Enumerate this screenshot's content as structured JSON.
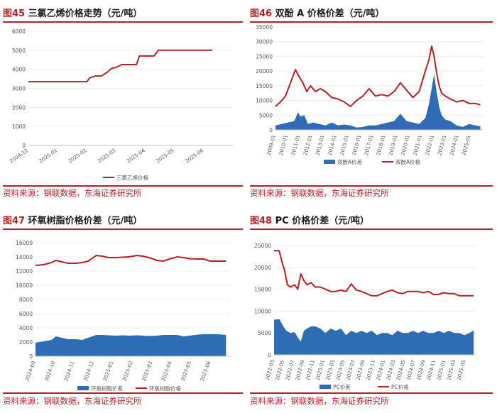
{
  "source_text": "资料来源：钢联数据，东海证券研究所",
  "panels": [
    {
      "num": "图45",
      "title": "三氯乙烯价格走势（元/吨）",
      "chart_data": {
        "type": "line",
        "x_tick_labels": [
          "2024-12",
          "2025-01",
          "2025-02",
          "2025-03",
          "2025-04",
          "2025-05",
          "2025-06"
        ],
        "y_tick_labels": [
          "0",
          "1000",
          "2000",
          "3000",
          "4000",
          "5000",
          "6000"
        ],
        "ylim": [
          0,
          6000
        ],
        "series": [
          {
            "name": "三氯乙烯价格",
            "color": "#b2212a",
            "x": [
              0,
              1,
              2,
              2.1,
              2.3,
              2.5,
              2.7,
              2.85,
              3.0,
              3.2,
              3.45,
              3.7,
              3.8,
              4.1,
              4.3,
              4.45,
              4.6,
              5.0,
              5.4,
              6.0,
              6.3
            ],
            "values": [
              3350,
              3350,
              3350,
              3550,
              3650,
              3650,
              3850,
              4050,
              4100,
              4250,
              4250,
              4250,
              4700,
              4700,
              4700,
              5000,
              5000,
              5000,
              5000,
              5000,
              5000
            ]
          }
        ]
      }
    },
    {
      "num": "图46",
      "title": "双酚 A 价格价差（元/吨）",
      "chart_data": {
        "type": "area",
        "x_tick_labels": [
          "2009-01",
          "2010-01",
          "2011-01",
          "2012-01",
          "2013-01",
          "2014-01",
          "2015-01",
          "2016-01",
          "2017-01",
          "2018-01",
          "2019-01",
          "2020-01",
          "2021-01",
          "2022-01",
          "2023-01",
          "2024-01",
          "2025-01"
        ],
        "y_tick_labels": [
          "0",
          "5000",
          "10000",
          "15000",
          "20000",
          "25000",
          "30000",
          "35000"
        ],
        "ylim": [
          0,
          35000
        ],
        "series": [
          {
            "name": "双酚A价差",
            "type": "area",
            "color": "#2e6db4",
            "x": [
              0,
              0.5,
              1,
              1.5,
              1.8,
              2,
              2.3,
              2.6,
              3,
              3.5,
              4,
              4.5,
              5,
              5.5,
              6,
              6.5,
              7,
              7.5,
              8,
              8.5,
              9,
              9.5,
              10,
              10.5,
              11,
              11.5,
              12,
              12.3,
              12.5,
              12.7,
              12.9,
              13.1,
              13.3,
              13.6,
              14,
              14.5,
              15,
              15.5,
              16,
              16.4
            ],
            "values": [
              1500,
              2000,
              2500,
              3000,
              6000,
              4500,
              5000,
              2000,
              2500,
              2000,
              1500,
              2500,
              1500,
              1800,
              1500,
              800,
              1000,
              1500,
              1500,
              2000,
              2500,
              3000,
              5500,
              3000,
              2500,
              2000,
              4000,
              9000,
              14000,
              19000,
              13000,
              8000,
              5000,
              3500,
              3000,
              1500,
              1000,
              2000,
              1500,
              1200
            ]
          },
          {
            "name": "双酚A价格",
            "type": "line",
            "color": "#b2212a",
            "x": [
              0,
              0.4,
              0.8,
              1.2,
              1.6,
              1.9,
              2.2,
              2.5,
              2.8,
              3.2,
              3.6,
              4,
              4.5,
              5,
              5.5,
              6,
              6.5,
              7,
              7.5,
              8,
              8.5,
              9,
              9.5,
              10,
              10.5,
              11,
              11.5,
              12,
              12.3,
              12.5,
              12.7,
              12.9,
              13.1,
              13.3,
              13.6,
              14,
              14.5,
              15,
              15.5,
              16,
              16.4
            ],
            "values": [
              8000,
              9500,
              11500,
              16000,
              20500,
              18000,
              16000,
              13000,
              15000,
              13000,
              14000,
              13000,
              11000,
              10500,
              9500,
              8000,
              10000,
              11500,
              14000,
              11500,
              12000,
              11500,
              13000,
              16000,
              13500,
              11000,
              13000,
              20000,
              24000,
              28500,
              25000,
              19500,
              15000,
              12500,
              11500,
              10500,
              9500,
              10000,
              9000,
              9000,
              8500
            ]
          }
        ]
      }
    },
    {
      "num": "图47",
      "title": "环氧树脂价格价差（元/吨）",
      "chart_data": {
        "type": "area",
        "x_tick_labels": [
          "2024-09",
          "2024-10",
          "2024-11",
          "2024-12",
          "2025-01",
          "2025-02",
          "2025-03",
          "2025-04",
          "2025-05",
          "2025-06"
        ],
        "y_tick_labels": [
          "0",
          "2000",
          "4000",
          "6000",
          "8000",
          "10000",
          "12000",
          "14000",
          "16000"
        ],
        "ylim": [
          0,
          16000
        ],
        "series": [
          {
            "name": "环氧树脂价差",
            "type": "area",
            "color": "#2e6db4",
            "x": [
              0,
              0.4,
              0.8,
              1,
              1.3,
              1.6,
              2,
              2.3,
              2.6,
              3,
              3.3,
              3.6,
              4,
              4.3,
              4.6,
              5,
              5.3,
              5.6,
              6,
              6.3,
              6.6,
              7,
              7.3,
              7.6,
              8,
              8.3,
              8.6,
              9,
              9.4
            ],
            "values": [
              1900,
              2100,
              2300,
              2800,
              2600,
              2400,
              2400,
              2300,
              2600,
              3000,
              3000,
              2950,
              2900,
              2950,
              2900,
              2950,
              2900,
              2850,
              2900,
              3000,
              3000,
              3000,
              2800,
              2900,
              3050,
              3100,
              3100,
              3100,
              3000
            ]
          },
          {
            "name": "环氧树脂价格",
            "type": "line",
            "color": "#b2212a",
            "x": [
              0,
              0.4,
              0.8,
              1,
              1.3,
              1.6,
              2,
              2.3,
              2.6,
              3,
              3.3,
              3.6,
              4,
              4.3,
              4.6,
              5,
              5.3,
              5.6,
              6,
              6.3,
              6.6,
              7,
              7.3,
              7.6,
              8,
              8.3,
              8.6,
              9,
              9.4
            ],
            "values": [
              12800,
              12900,
              13200,
              13500,
              13300,
              13100,
              13100,
              13200,
              13400,
              14200,
              14100,
              13900,
              13900,
              13950,
              14000,
              14200,
              14100,
              13900,
              13500,
              13400,
              13700,
              14000,
              13900,
              13750,
              13700,
              13700,
              13400,
              13400,
              13400
            ]
          }
        ]
      }
    },
    {
      "num": "图48",
      "title": "PC 价格价差（元/吨）",
      "chart_data": {
        "type": "area",
        "x_tick_labels": [
          "2022-03",
          "2022-05",
          "2022-07",
          "2022-09",
          "2022-11",
          "2023-01",
          "2023-03",
          "2023-05",
          "2023-07",
          "2023-09",
          "2023-11",
          "2024-01",
          "2024-03",
          "2024-05",
          "2024-07",
          "2024-09",
          "2024-11",
          "2025-01",
          "2025-03",
          "2025-05"
        ],
        "y_tick_labels": [
          "0",
          "5000",
          "10000",
          "15000",
          "20000",
          "25000"
        ],
        "ylim": [
          0,
          25000
        ],
        "series": [
          {
            "name": "PC价差",
            "type": "area",
            "color": "#2e6db4",
            "x": [
              0,
              0.5,
              0.9,
              1.2,
              1.6,
              2,
              2.3,
              2.6,
              2.9,
              3.2,
              3.6,
              4,
              4.5,
              5,
              5.5,
              6,
              6.5,
              7,
              7.5,
              8,
              8.5,
              9,
              9.5,
              10,
              10.5,
              11,
              11.5,
              12,
              12.5,
              13,
              13.5,
              14,
              14.5,
              15,
              15.5,
              16,
              16.5,
              17,
              17.5,
              18,
              18.5,
              19,
              19.4
            ],
            "values": [
              8000,
              8200,
              6500,
              5500,
              5000,
              5200,
              4000,
              3000,
              5500,
              6000,
              6500,
              6500,
              6000,
              5000,
              6000,
              5500,
              6000,
              4500,
              5500,
              5000,
              5500,
              5000,
              5500,
              4500,
              5000,
              5000,
              4500,
              5500,
              5000,
              5000,
              5500,
              5000,
              5500,
              5000,
              5000,
              5500,
              5000,
              5500,
              5000,
              5000,
              4500,
              5000,
              5600
            ]
          },
          {
            "name": "PC价格",
            "type": "line",
            "color": "#b2212a",
            "x": [
              0,
              0.5,
              0.8,
              1,
              1.3,
              1.6,
              2,
              2.3,
              2.6,
              2.9,
              3.2,
              3.6,
              4,
              4.5,
              5,
              5.5,
              6,
              6.5,
              7,
              7.5,
              8,
              8.5,
              9,
              9.5,
              10,
              10.5,
              11,
              11.5,
              12,
              12.5,
              13,
              13.5,
              14,
              14.5,
              15,
              15.5,
              16,
              16.5,
              17,
              17.5,
              18,
              18.5,
              19,
              19.4
            ],
            "values": [
              23800,
              23800,
              21000,
              19500,
              16000,
              15500,
              16000,
              15000,
              18500,
              17000,
              16000,
              16500,
              15500,
              15500,
              15000,
              14500,
              14500,
              14800,
              14500,
              16200,
              14800,
              14500,
              14000,
              13500,
              13500,
              14000,
              14500,
              14800,
              14200,
              14000,
              14500,
              14500,
              14500,
              14200,
              14500,
              13800,
              13800,
              14200,
              14000,
              14000,
              13500,
              13500,
              13500,
              13500
            ]
          }
        ]
      }
    }
  ]
}
